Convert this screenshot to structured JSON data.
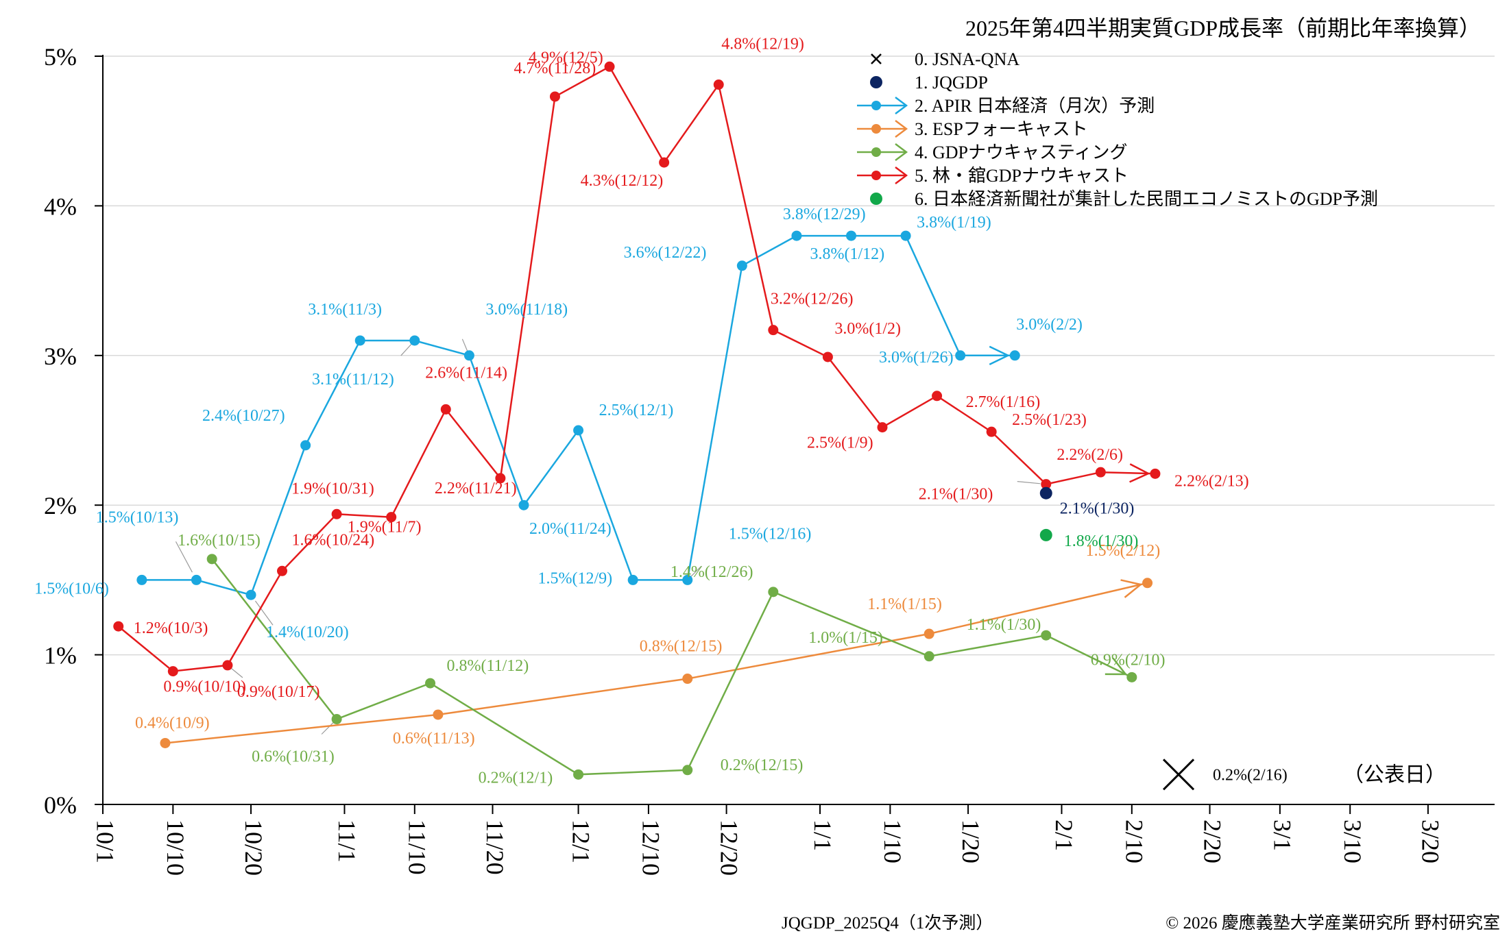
{
  "chart_data": {
    "type": "line",
    "title": "2025年第4四半期実質GDP成長率（前期比年率換算）",
    "ylim": [
      0,
      5
    ],
    "y_ticks": [
      "0%",
      "1%",
      "2%",
      "3%",
      "4%",
      "5%"
    ],
    "x_ticks": [
      "10/1",
      "10/10",
      "10/20",
      "11/1",
      "11/10",
      "11/20",
      "12/1",
      "12/10",
      "12/20",
      "1/1",
      "1/10",
      "1/20",
      "2/1",
      "2/10",
      "2/20",
      "3/1",
      "3/10",
      "3/20"
    ],
    "legend": [
      {
        "label": "0. JSNA-QNA",
        "color": "#000000",
        "marker": "x"
      },
      {
        "label": "1. JQGDP",
        "color": "#0c2461",
        "marker": "dot"
      },
      {
        "label": "2. APIR 日本経済（月次）予測",
        "color": "#1aa7df",
        "marker": "arrow"
      },
      {
        "label": "3. ESPフォーキャスト",
        "color": "#ed8a3c",
        "marker": "arrow"
      },
      {
        "label": "4. GDPナウキャスティング",
        "color": "#70ad47",
        "marker": "arrow"
      },
      {
        "label": "5. 林・舘GDPナウキャスト",
        "color": "#e41a1c",
        "marker": "arrow"
      },
      {
        "label": "6. 日本経済新聞社が集計した民間エコノミストのGDP予測",
        "color": "#12a84a",
        "marker": "dot"
      }
    ],
    "series": [
      {
        "name": "2. APIR 日本経済（月次）予測",
        "color": "#1aa7df",
        "arrow": true,
        "points": [
          {
            "day": 5,
            "value": 1.5,
            "label": "1.5%(10/6)"
          },
          {
            "day": 12,
            "value": 1.5,
            "label": "1.5%(10/13)"
          },
          {
            "day": 19,
            "value": 1.4,
            "label": "1.4%(10/20)"
          },
          {
            "day": 26,
            "value": 2.4,
            "label": "2.4%(10/27)"
          },
          {
            "day": 33,
            "value": 3.1,
            "label": "3.1%(11/3)"
          },
          {
            "day": 40,
            "value": 3.1,
            "label": "3.1%(11/12)"
          },
          {
            "day": 47,
            "value": 3.0,
            "label": "3.0%(11/18)"
          },
          {
            "day": 54,
            "value": 2.0,
            "label": "2.0%(11/24)"
          },
          {
            "day": 61,
            "value": 2.5,
            "label": "2.5%(12/1)"
          },
          {
            "day": 68,
            "value": 1.5,
            "label": "1.5%(12/9)"
          },
          {
            "day": 75,
            "value": 1.5,
            "label": "1.5%(12/16)"
          },
          {
            "day": 82,
            "value": 3.6,
            "label": "3.6%(12/22)"
          },
          {
            "day": 89,
            "value": 3.8,
            "label": "3.8%(12/29)"
          },
          {
            "day": 96,
            "value": 3.8,
            "label": "3.8%(1/12)"
          },
          {
            "day": 103,
            "value": 3.8,
            "label": "3.8%(1/19)"
          },
          {
            "day": 110,
            "value": 3.0,
            "label": "3.0%(1/26)"
          },
          {
            "day": 117,
            "value": 3.0,
            "label": "3.0%(2/2)"
          }
        ]
      },
      {
        "name": "3. ESPフォーキャスト",
        "color": "#ed8a3c",
        "arrow": true,
        "points": [
          {
            "day": 8,
            "value": 0.41,
            "label": "0.4%(10/9)"
          },
          {
            "day": 43,
            "value": 0.6,
            "label": "0.6%(11/13)"
          },
          {
            "day": 75,
            "value": 0.84,
            "label": "0.8%(12/15)"
          },
          {
            "day": 106,
            "value": 1.14,
            "label": "1.1%(1/15)"
          },
          {
            "day": 134,
            "value": 1.48,
            "label": "1.5%(2/12)"
          }
        ]
      },
      {
        "name": "4. GDPナウキャスティング",
        "color": "#70ad47",
        "arrow": true,
        "points": [
          {
            "day": 14,
            "value": 1.64,
            "label": "1.6%(10/15)"
          },
          {
            "day": 30,
            "value": 0.57,
            "label": "0.6%(10/31)"
          },
          {
            "day": 42,
            "value": 0.81,
            "label": "0.8%(11/12)"
          },
          {
            "day": 61,
            "value": 0.2,
            "label": "0.2%(12/1)"
          },
          {
            "day": 75,
            "value": 0.23,
            "label": "0.2%(12/15)"
          },
          {
            "day": 86,
            "value": 1.42,
            "label": "1.4%(12/26)"
          },
          {
            "day": 106,
            "value": 0.99,
            "label": "1.0%(1/15)"
          },
          {
            "day": 121,
            "value": 1.13,
            "label": "1.1%(1/30)"
          },
          {
            "day": 132,
            "value": 0.85,
            "label": "0.9%(2/10)"
          }
        ]
      },
      {
        "name": "5. 林・舘GDPナウキャスト",
        "color": "#e41a1c",
        "arrow": true,
        "points": [
          {
            "day": 2,
            "value": 1.19,
            "label": "1.2%(10/3)"
          },
          {
            "day": 9,
            "value": 0.89,
            "label": "0.9%(10/10)"
          },
          {
            "day": 16,
            "value": 0.93,
            "label": "0.9%(10/17)"
          },
          {
            "day": 23,
            "value": 1.56,
            "label": "1.6%(10/24)"
          },
          {
            "day": 30,
            "value": 1.94,
            "label": "1.9%(10/31)"
          },
          {
            "day": 37,
            "value": 1.92,
            "label": "1.9%(11/7)"
          },
          {
            "day": 44,
            "value": 2.64,
            "label": "2.6%(11/14)"
          },
          {
            "day": 51,
            "value": 2.18,
            "label": "2.2%(11/21)"
          },
          {
            "day": 58,
            "value": 4.73,
            "label": "4.7%(11/28)"
          },
          {
            "day": 65,
            "value": 4.93,
            "label": "4.9%(12/5)"
          },
          {
            "day": 72,
            "value": 4.29,
            "label": "4.3%(12/12)"
          },
          {
            "day": 79,
            "value": 4.81,
            "label": "4.8%(12/19)"
          },
          {
            "day": 86,
            "value": 3.17,
            "label": "3.2%(12/26)"
          },
          {
            "day": 93,
            "value": 2.99,
            "label": "3.0%(1/2)"
          },
          {
            "day": 100,
            "value": 2.52,
            "label": "2.5%(1/9)"
          },
          {
            "day": 107,
            "value": 2.73,
            "label": "2.7%(1/16)"
          },
          {
            "day": 114,
            "value": 2.49,
            "label": "2.5%(1/23)"
          },
          {
            "day": 121,
            "value": 2.14,
            "label": "2.1%(1/30)"
          },
          {
            "day": 128,
            "value": 2.22,
            "label": "2.2%(2/6)"
          },
          {
            "day": 135,
            "value": 2.21,
            "label": "2.2%(2/13)"
          }
        ]
      },
      {
        "name": "1. JQGDP",
        "color": "#0c2461",
        "arrow": false,
        "line": false,
        "points": [
          {
            "day": 121,
            "value": 2.08,
            "label": "2.1%(1/30)"
          }
        ]
      },
      {
        "name": "6. 日本経済新聞社が集計した民間エコノミストのGDP予測",
        "color": "#12a84a",
        "arrow": false,
        "line": false,
        "points": [
          {
            "day": 121,
            "value": 1.8,
            "label": "1.8%(1/30)"
          }
        ]
      }
    ],
    "release": {
      "day": 138,
      "value": 0.2,
      "label": "0.2%(2/16)",
      "note": "（公表日）"
    }
  },
  "footer": {
    "left": "JQGDP_2025Q4（1次予測）",
    "right": "© 2026 慶應義塾大学産業研究所 野村研究室"
  }
}
